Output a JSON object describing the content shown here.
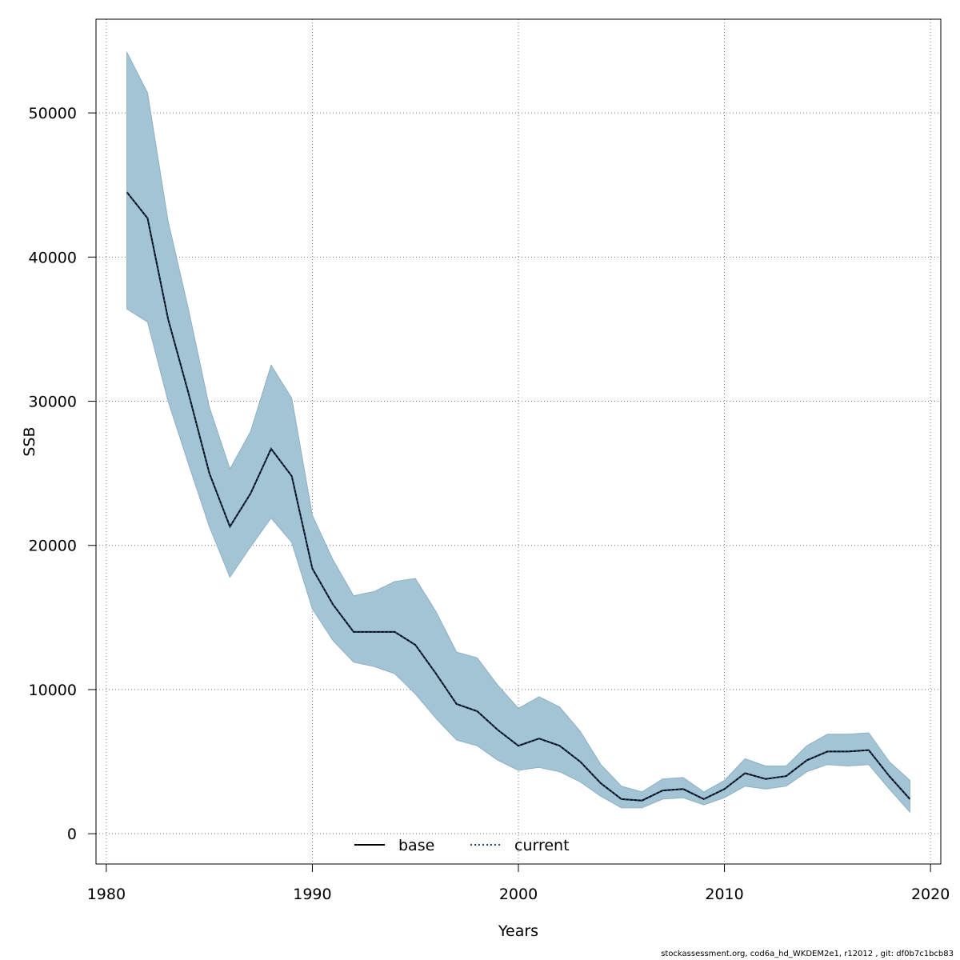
{
  "chart_data": {
    "type": "area",
    "xlabel": "Years",
    "ylabel": "SSB",
    "xlim": [
      1979.5,
      2020.5
    ],
    "ylim": [
      -2100,
      56500
    ],
    "x_ticks": [
      1980,
      1990,
      2000,
      2010,
      2020
    ],
    "y_ticks": [
      0,
      10000,
      20000,
      30000,
      40000,
      50000
    ],
    "grid": true,
    "legend_position": "bottom-center",
    "x": [
      1981,
      1982,
      1983,
      1984,
      1985,
      1986,
      1987,
      1988,
      1989,
      1990,
      1991,
      1992,
      1993,
      1994,
      1995,
      1996,
      1997,
      1998,
      1999,
      2000,
      2001,
      2002,
      2003,
      2004,
      2005,
      2006,
      2007,
      2008,
      2009,
      2010,
      2011,
      2012,
      2013,
      2014,
      2015,
      2016,
      2017,
      2018,
      2019
    ],
    "series": [
      {
        "name": "base",
        "style": "solid",
        "color": "#000000",
        "values": [
          44500,
          42700,
          35700,
          30500,
          25000,
          21300,
          23600,
          26700,
          24800,
          18400,
          15900,
          14000,
          14000,
          14000,
          13100,
          11100,
          9000,
          8500,
          7200,
          6100,
          6600,
          6100,
          5000,
          3500,
          2400,
          2300,
          3000,
          3100,
          2400,
          3100,
          4200,
          3800,
          4000,
          5100,
          5700,
          5700,
          5800,
          4000,
          2400
        ]
      },
      {
        "name": "current",
        "style": "dotted",
        "color": "#1a4a7a",
        "values": [
          44500,
          42700,
          35700,
          30500,
          25000,
          21300,
          23600,
          26700,
          24800,
          18400,
          15900,
          14000,
          14000,
          14000,
          13100,
          11100,
          9000,
          8500,
          7200,
          6100,
          6600,
          6100,
          5000,
          3500,
          2400,
          2300,
          3000,
          3100,
          2400,
          3100,
          4200,
          3800,
          4000,
          5100,
          5700,
          5700,
          5800,
          4000,
          2400
        ]
      }
    ],
    "confidence_band": {
      "color": "#a3c4d5",
      "upper": [
        54200,
        51400,
        42500,
        36300,
        29600,
        25300,
        27900,
        32500,
        30200,
        22100,
        19000,
        16500,
        16800,
        17500,
        17700,
        15400,
        12600,
        12200,
        10300,
        8700,
        9500,
        8800,
        7100,
        4800,
        3300,
        2900,
        3800,
        3900,
        2900,
        3700,
        5200,
        4700,
        4700,
        6100,
        6900,
        6900,
        7000,
        5000,
        3700
      ],
      "lower": [
        36400,
        35500,
        30000,
        25600,
        21300,
        17800,
        19900,
        21900,
        20200,
        15600,
        13400,
        11900,
        11600,
        11100,
        9700,
        8000,
        6500,
        6100,
        5100,
        4400,
        4600,
        4300,
        3600,
        2600,
        1800,
        1800,
        2400,
        2500,
        2000,
        2500,
        3300,
        3100,
        3300,
        4300,
        4800,
        4700,
        4800,
        3100,
        1500
      ]
    }
  },
  "footer": {
    "text": "stockassessment.org, cod6a_hd_WKDEM2e1, r12012 , git: df0b7c1bcb83"
  }
}
